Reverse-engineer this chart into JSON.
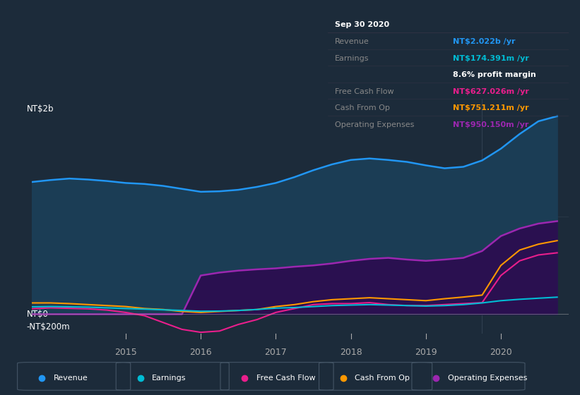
{
  "background_color": "#1c2b3a",
  "plot_bg_color": "#1c2b3a",
  "ylabel_top": "NT$2b",
  "ylabel_bottom": "-NT$200m",
  "ylabel_zero": "NT$0",
  "x_ticks": [
    2015,
    2016,
    2017,
    2018,
    2019,
    2020
  ],
  "colors": {
    "revenue": "#2196f3",
    "earnings": "#00bcd4",
    "free_cash_flow": "#e91e8c",
    "cash_from_op": "#ff9800",
    "operating_expenses": "#9c27b0"
  },
  "revenue_fill": "#1a3a52",
  "op_exp_fill": "#2a1a4a",
  "legend": [
    {
      "label": "Revenue",
      "color": "#2196f3"
    },
    {
      "label": "Earnings",
      "color": "#00bcd4"
    },
    {
      "label": "Free Cash Flow",
      "color": "#e91e8c"
    },
    {
      "label": "Cash From Op",
      "color": "#ff9800"
    },
    {
      "label": "Operating Expenses",
      "color": "#9c27b0"
    }
  ],
  "tooltip": {
    "date": "Sep 30 2020",
    "revenue": "NT$2.022b",
    "earnings": "NT$174.391m",
    "profit_margin": "8.6%",
    "free_cash_flow": "NT$627.026m",
    "cash_from_op": "NT$751.211m",
    "operating_expenses": "NT$950.150m"
  },
  "series": {
    "x": [
      2013.75,
      2014.0,
      2014.25,
      2014.5,
      2014.75,
      2015.0,
      2015.25,
      2015.5,
      2015.75,
      2016.0,
      2016.25,
      2016.5,
      2016.75,
      2017.0,
      2017.25,
      2017.5,
      2017.75,
      2018.0,
      2018.25,
      2018.5,
      2018.75,
      2019.0,
      2019.25,
      2019.5,
      2019.75,
      2020.0,
      2020.25,
      2020.5,
      2020.75
    ],
    "revenue": [
      1350,
      1370,
      1385,
      1375,
      1360,
      1340,
      1330,
      1310,
      1280,
      1250,
      1255,
      1270,
      1300,
      1340,
      1400,
      1470,
      1530,
      1575,
      1590,
      1575,
      1555,
      1520,
      1490,
      1505,
      1570,
      1690,
      1840,
      1970,
      2022
    ],
    "earnings": [
      75,
      78,
      75,
      72,
      65,
      58,
      52,
      45,
      38,
      30,
      32,
      38,
      48,
      62,
      68,
      78,
      88,
      93,
      98,
      93,
      88,
      83,
      88,
      98,
      115,
      138,
      152,
      163,
      174
    ],
    "free_cash_flow": [
      55,
      65,
      60,
      55,
      42,
      18,
      -15,
      -85,
      -155,
      -185,
      -172,
      -105,
      -55,
      18,
      58,
      98,
      108,
      108,
      118,
      98,
      88,
      88,
      98,
      108,
      118,
      395,
      545,
      605,
      627
    ],
    "cash_from_op": [
      115,
      115,
      108,
      98,
      88,
      78,
      58,
      48,
      28,
      18,
      28,
      38,
      48,
      78,
      98,
      128,
      148,
      158,
      168,
      158,
      148,
      138,
      158,
      175,
      195,
      498,
      655,
      715,
      751
    ],
    "operating_expenses": [
      0,
      0,
      0,
      0,
      0,
      0,
      0,
      0,
      0,
      395,
      425,
      445,
      458,
      468,
      485,
      498,
      518,
      545,
      565,
      575,
      558,
      545,
      558,
      575,
      645,
      798,
      875,
      925,
      950
    ]
  },
  "ylim": [
    -200,
    2200
  ],
  "xlim_start": 2013.75,
  "xlim_end": 2020.9
}
